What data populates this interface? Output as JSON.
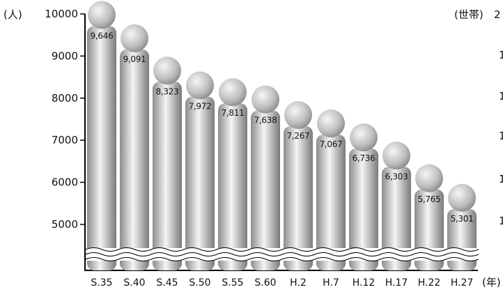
{
  "chart_data": {
    "type": "bar",
    "title": "",
    "xlabel": "",
    "ylabel": "",
    "left_unit": "(人)",
    "right_unit": "(世帯)",
    "right_unit_suffix": "2",
    "x_unit": "(年)",
    "categories": [
      "S.35",
      "S.40",
      "S.45",
      "S.50",
      "S.55",
      "S.60",
      "H.2",
      "H.7",
      "H.12",
      "H.17",
      "H.22",
      "H.27"
    ],
    "values": [
      9646,
      9091,
      8323,
      7972,
      7811,
      7638,
      7267,
      7067,
      6736,
      6303,
      5765,
      5301
    ],
    "value_labels": [
      "9,646",
      "9,091",
      "8,323",
      "7,972",
      "7,811",
      "7,638",
      "7,267",
      "7,067",
      "6,736",
      "6,303",
      "5,765",
      "5,301"
    ],
    "y_ticks": [
      "10000",
      "9000",
      "8000",
      "7000",
      "6000",
      "5000"
    ],
    "y_tick_values": [
      10000,
      9000,
      8000,
      7000,
      6000,
      5000
    ],
    "right_tick_marks": [
      "1",
      "1",
      "1",
      "1",
      "1"
    ],
    "ylim": [
      5000,
      10000
    ],
    "axis_break": true,
    "grid": false,
    "legend": "none",
    "bar_style": "cylinder-person",
    "colors": {
      "bar_light": "#f4f4f4",
      "bar_dark": "#8c8c8c",
      "axis": "#000000",
      "text": "#111111"
    }
  }
}
